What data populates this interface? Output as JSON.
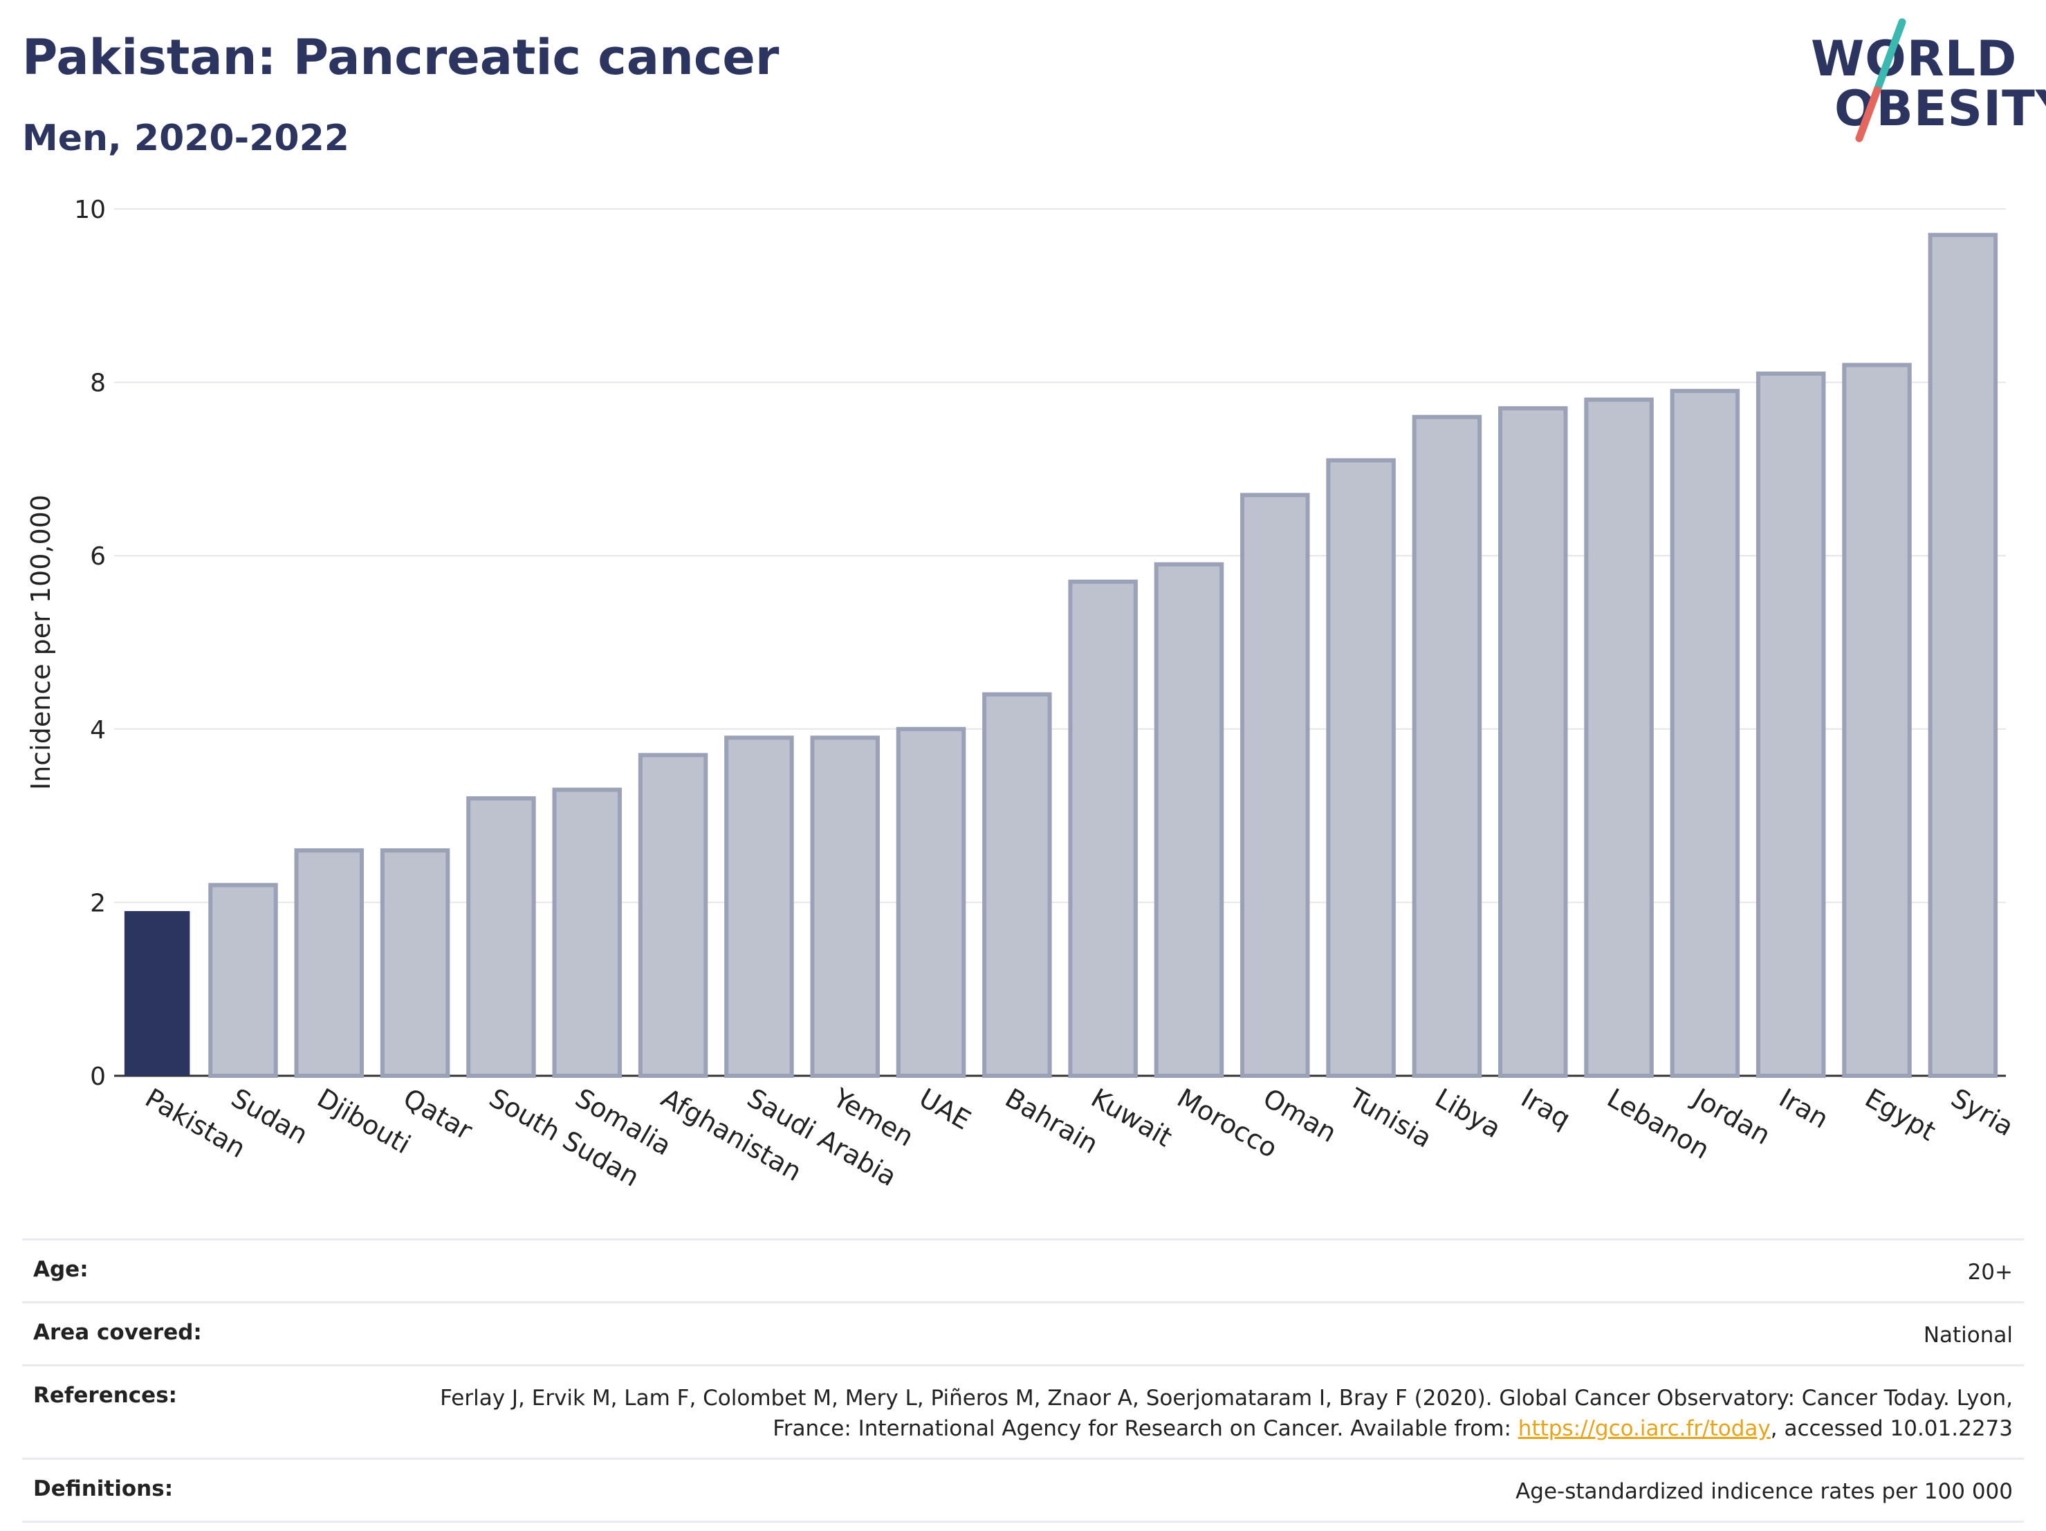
{
  "header": {
    "title": "Pakistan: Pancreatic cancer",
    "subtitle": "Men, 2020-2022"
  },
  "logo": {
    "line1": "WORLD",
    "line2": "OBESITY"
  },
  "chart_data": {
    "type": "bar",
    "categories": [
      "Pakistan",
      "Sudan",
      "Djibouti",
      "Qatar",
      "South Sudan",
      "Somalia",
      "Afghanistan",
      "Saudi Arabia",
      "Yemen",
      "UAE",
      "Bahrain",
      "Kuwait",
      "Morocco",
      "Oman",
      "Tunisia",
      "Libya",
      "Iraq",
      "Lebanon",
      "Jordan",
      "Iran",
      "Egypt",
      "Syria"
    ],
    "values": [
      1.9,
      2.2,
      2.6,
      2.6,
      3.2,
      3.3,
      3.7,
      3.9,
      3.9,
      4.0,
      4.4,
      5.7,
      5.9,
      6.7,
      7.1,
      7.6,
      7.7,
      7.8,
      7.9,
      8.1,
      8.2,
      9.7
    ],
    "highlight": "Pakistan",
    "highlight_color": "#2b3560",
    "bar_color": "#bec2cf",
    "bar_border_color": "#9ba1b6",
    "ylabel": "Incidence per 100,000",
    "xlabel": "",
    "ylim": [
      0,
      10
    ],
    "yticks": [
      0,
      2,
      4,
      6,
      8,
      10
    ],
    "grid": true
  },
  "info": {
    "age_label": "Age:",
    "age_value": "20+",
    "area_label": "Area covered:",
    "area_value": "National",
    "references_label": "References:",
    "references_text_1": "Ferlay J, Ervik M, Lam F, Colombet M, Mery L, Piñeros M, Znaor A, Soerjomataram I, Bray F (2020). Global Cancer Observatory: Cancer Today. Lyon, France: International Agency for Research on Cancer. Available from: ",
    "references_link": "https://gco.iarc.fr/today",
    "references_text_2": ", accessed 10.01.2273",
    "definitions_label": "Definitions:",
    "definitions_value": "Age-standardized indicence rates per 100 000"
  }
}
